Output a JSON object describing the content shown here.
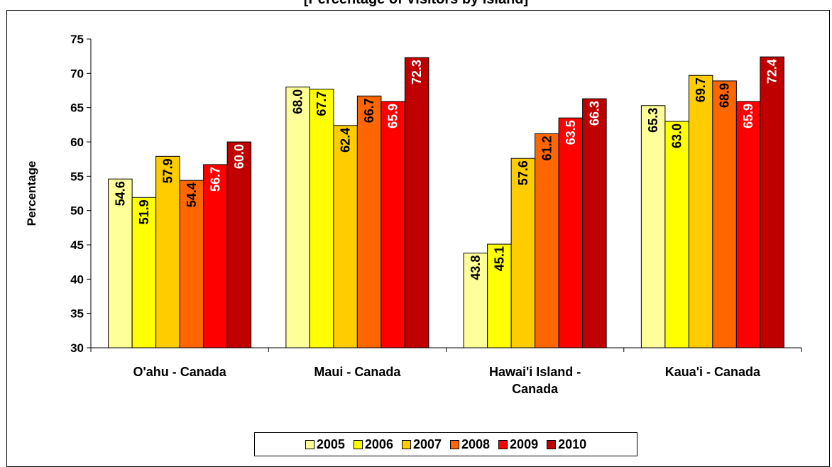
{
  "title": "[Percentage of Visitors by Island]",
  "chart_data": {
    "type": "bar",
    "categories": [
      [
        "O'ahu - Canada"
      ],
      [
        "Maui - Canada"
      ],
      [
        "Hawai'i Island -",
        "Canada"
      ],
      [
        "Kaua'i - Canada"
      ]
    ],
    "series": [
      {
        "name": "2005",
        "color": "#FFFF99",
        "label_color": "#000000",
        "values": [
          54.6,
          68.0,
          43.8,
          65.3
        ]
      },
      {
        "name": "2006",
        "color": "#FFFF00",
        "label_color": "#000000",
        "values": [
          51.9,
          67.7,
          45.1,
          63.0
        ]
      },
      {
        "name": "2007",
        "color": "#FFCC00",
        "label_color": "#000000",
        "values": [
          57.9,
          62.4,
          57.6,
          69.7
        ]
      },
      {
        "name": "2008",
        "color": "#FF6600",
        "label_color": "#000000",
        "values": [
          54.4,
          66.7,
          61.2,
          68.9
        ]
      },
      {
        "name": "2009",
        "color": "#FF0000",
        "label_color": "#FFFFFF",
        "values": [
          56.7,
          65.9,
          63.5,
          65.9
        ]
      },
      {
        "name": "2010",
        "color": "#C00000",
        "label_color": "#FFFFFF",
        "values": [
          60.0,
          72.3,
          66.3,
          72.4
        ]
      }
    ],
    "ylabel": "Percentage",
    "xlabel": "",
    "ylim": [
      30,
      75
    ],
    "yticks": [
      30,
      35,
      40,
      45,
      50,
      55,
      60,
      65,
      70,
      75
    ],
    "grid": false,
    "legend": "bottom"
  }
}
